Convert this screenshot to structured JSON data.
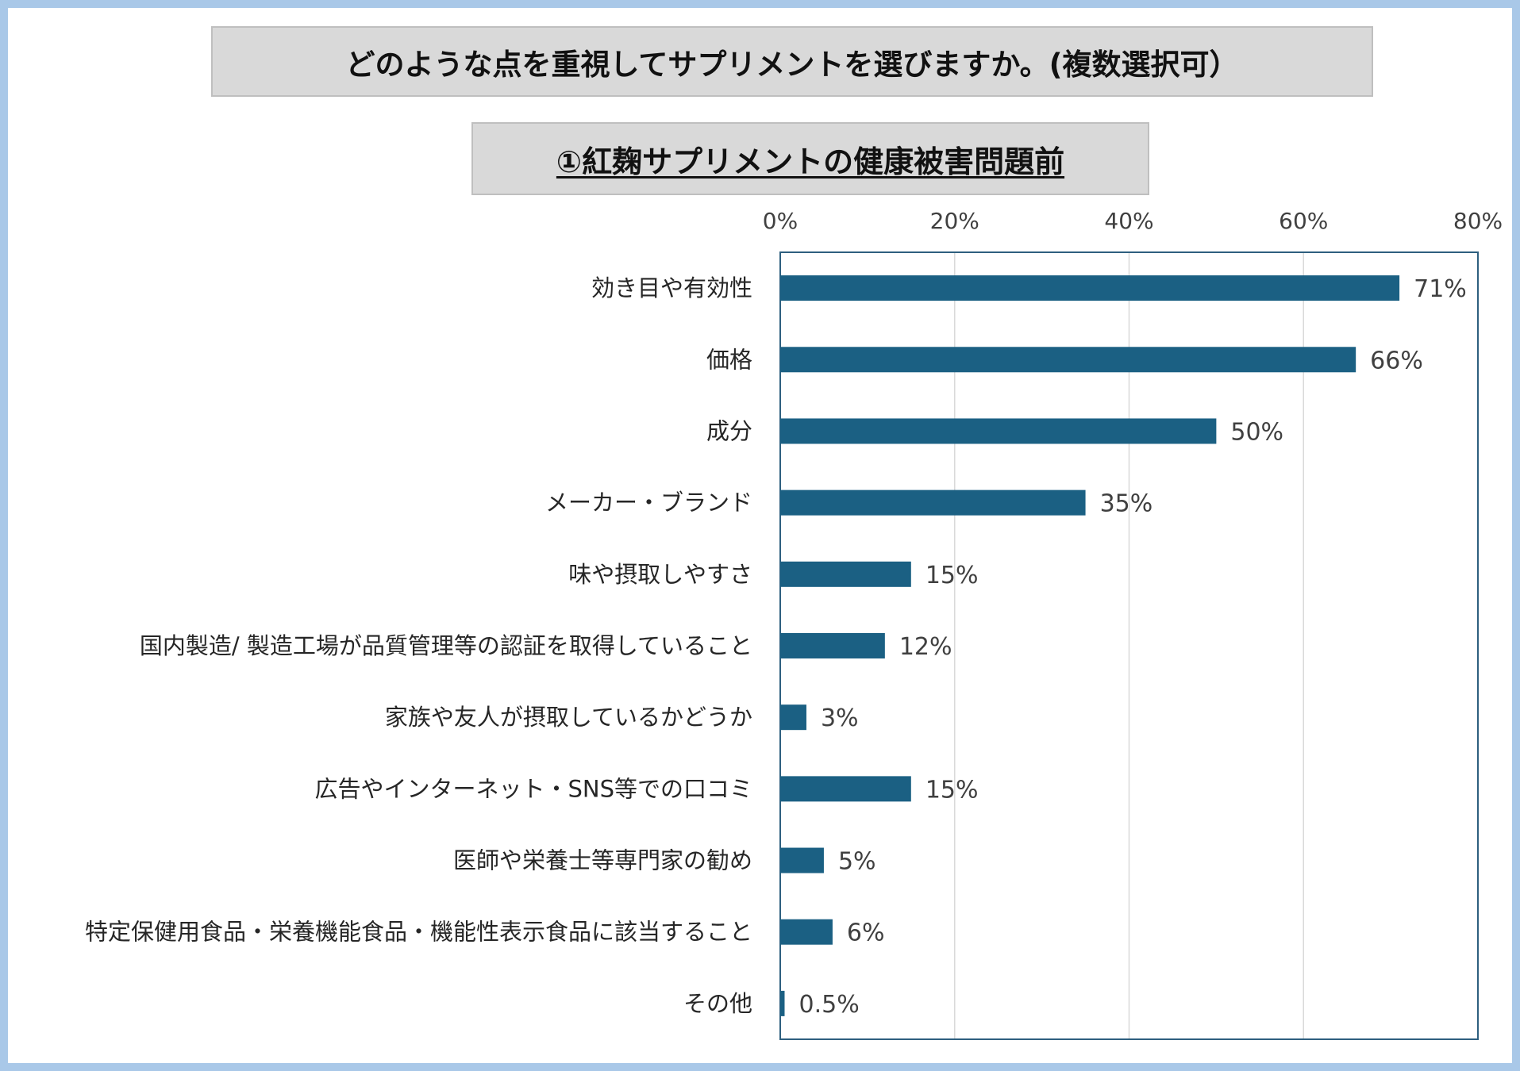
{
  "title": "どのような点を重視してサプリメントを選びますか。(複数選択可）",
  "subtitle": "①紅麹サプリメントの健康被害問題前",
  "colors": {
    "bar": "#1b6083",
    "frame_border": "#a9c8e8",
    "box_fill": "#d9d9d9",
    "plot_border": "#2e5f7f",
    "grid": "#d9d9d9"
  },
  "chart_data": {
    "type": "bar",
    "orientation": "horizontal",
    "categories": [
      "効き目や有効性",
      "価格",
      "成分",
      "メーカー・ブランド",
      "味や摂取しやすさ",
      "国内製造/ 製造工場が品質管理等の認証を取得していること",
      "家族や友人が摂取しているかどうか",
      "広告やインターネット・SNS等での口コミ",
      "医師や栄養士等専門家の勧め",
      "特定保健用食品・栄養機能食品・機能性表示食品に該当すること",
      "その他"
    ],
    "values": [
      71,
      66,
      50,
      35,
      15,
      12,
      3,
      15,
      5,
      6,
      0.5
    ],
    "value_labels": [
      "71%",
      "66%",
      "50%",
      "35%",
      "15%",
      "12%",
      "3%",
      "15%",
      "5%",
      "6%",
      "0.5%"
    ],
    "xlim": [
      0,
      80
    ],
    "xticks": [
      0,
      20,
      40,
      60,
      80
    ],
    "xtick_labels": [
      "0%",
      "20%",
      "40%",
      "60%",
      "80%"
    ],
    "x_axis_position": "top",
    "grid": true,
    "legend": "none"
  }
}
